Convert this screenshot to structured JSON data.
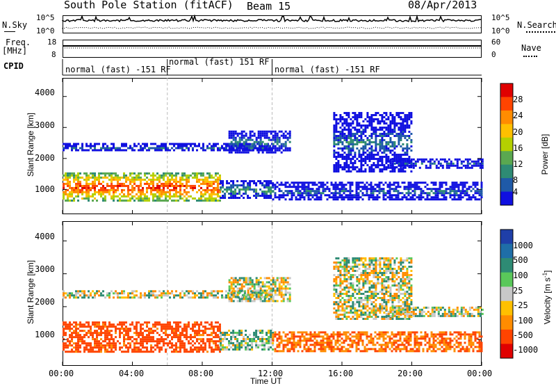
{
  "header": {
    "station": "South Pole Station (fitACF)",
    "beam": "Beam 15",
    "date": "08/Apr/2013"
  },
  "strip": {
    "nsky_label": "N.Sky",
    "nsearch_label": "N.Search",
    "nsky_ticks": [
      "10^5",
      "10^0"
    ],
    "nsearch_ticks": [
      "10^5",
      "10^0"
    ],
    "freq_label": "Freq.",
    "freq_unit": "[MHz]",
    "freq_ticks": [
      "18",
      "8"
    ],
    "nave_label": "Nave",
    "nave_ticks": [
      "60",
      "0"
    ],
    "cpid_label": "CPID",
    "cpid_segments": [
      {
        "label": "normal (fast) -151 RF",
        "start_hour": 0,
        "end_hour": 6
      },
      {
        "label": "normal (fast) 151 RF",
        "start_hour": 6,
        "end_hour": 12
      },
      {
        "label": "normal (fast) -151 RF",
        "start_hour": 12,
        "end_hour": 24
      }
    ]
  },
  "chart_data": [
    {
      "type": "heatmap",
      "name": "power",
      "ylabel": "Slant Range [km]",
      "xlabel": "",
      "xlim": [
        0,
        24
      ],
      "ylim": [
        200,
        4600
      ],
      "yticks": [
        "1000",
        "2000",
        "3000",
        "4000"
      ],
      "colorbar_label": "Power [dB]",
      "colorbar_ticks": [
        "28",
        "24",
        "20",
        "16",
        "12",
        "8",
        "4"
      ],
      "colorbar_colors": [
        "#e00000",
        "#ff4400",
        "#ff8c00",
        "#ffc000",
        "#b4d000",
        "#5aa850",
        "#2e8b74",
        "#1f5aa8",
        "#1010e0"
      ],
      "dashed_x": [
        6,
        12
      ],
      "bands": [
        {
          "t0": 0.0,
          "t1": 9.0,
          "r0": 650,
          "r1": 1550,
          "level": 26
        },
        {
          "t0": 9.0,
          "t1": 12.0,
          "r0": 700,
          "r1": 1300,
          "level": 12
        },
        {
          "t0": 12.0,
          "t1": 24.0,
          "r0": 650,
          "r1": 1250,
          "level": 8
        },
        {
          "t0": 0.0,
          "t1": 12.0,
          "r0": 2250,
          "r1": 2500,
          "level": 8
        },
        {
          "t0": 9.5,
          "t1": 13.0,
          "r0": 2200,
          "r1": 2900,
          "level": 10
        },
        {
          "t0": 15.5,
          "t1": 20.0,
          "r0": 1600,
          "r1": 3500,
          "level": 9
        },
        {
          "t0": 18.5,
          "t1": 24.0,
          "r0": 1700,
          "r1": 2000,
          "level": 8
        }
      ]
    },
    {
      "type": "heatmap",
      "name": "velocity",
      "ylabel": "Slant Range [km]",
      "xlabel": "Time UT",
      "xlim": [
        0,
        24
      ],
      "ylim": [
        200,
        4600
      ],
      "yticks": [
        "1000",
        "2000",
        "3000",
        "4000"
      ],
      "xticks": [
        "00:00",
        "04:00",
        "08:00",
        "12:00",
        "16:00",
        "20:00",
        "00:00"
      ],
      "colorbar_label": "Velocity [m s",
      "colorbar_label_sup": "-1",
      "colorbar_label_end": "]",
      "colorbar_ticks": [
        "1000",
        "500",
        "100",
        "25",
        "-25",
        "-100",
        "-500",
        "-1000"
      ],
      "colorbar_colors": [
        "#1f3fa8",
        "#1f6ea8",
        "#2e8b74",
        "#5ac85a",
        "#c8c8c8",
        "#ffc000",
        "#ff8c00",
        "#ff4400",
        "#e00000"
      ],
      "dashed_x": [
        6,
        12
      ],
      "bands": [
        {
          "t0": 0.0,
          "t1": 9.0,
          "r0": 650,
          "r1": 1550,
          "level": -400
        },
        {
          "t0": 9.0,
          "t1": 12.0,
          "r0": 700,
          "r1": 1300,
          "level": 50
        },
        {
          "t0": 12.0,
          "t1": 24.0,
          "r0": 650,
          "r1": 1250,
          "level": -300
        },
        {
          "t0": 0.0,
          "t1": 12.0,
          "r0": 2250,
          "r1": 2500,
          "level": 0
        },
        {
          "t0": 9.5,
          "t1": 13.0,
          "r0": 2200,
          "r1": 2900,
          "level": 0
        },
        {
          "t0": 15.5,
          "t1": 20.0,
          "r0": 1600,
          "r1": 3500,
          "level": 0
        },
        {
          "t0": 18.5,
          "t1": 24.0,
          "r0": 1700,
          "r1": 2000,
          "level": 0
        }
      ]
    }
  ]
}
